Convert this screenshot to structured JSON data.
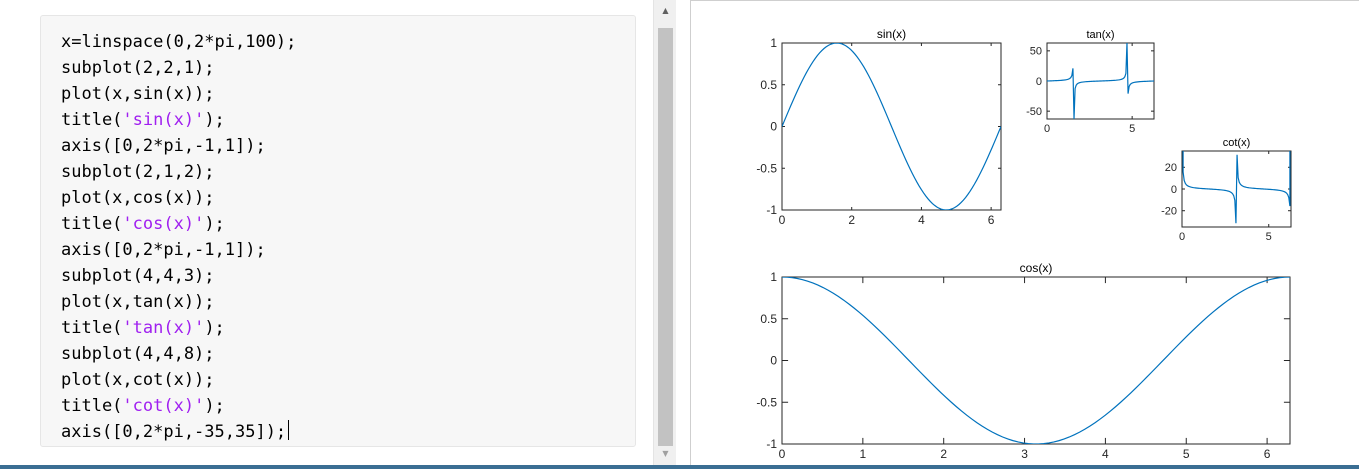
{
  "editor": {
    "lines": [
      [
        {
          "t": "x=linspace(0,2*pi,100);",
          "s": false
        }
      ],
      [
        {
          "t": "subplot(2,2,1);",
          "s": false
        }
      ],
      [
        {
          "t": "plot(x,sin(x));",
          "s": false
        }
      ],
      [
        {
          "t": "title(",
          "s": false
        },
        {
          "t": "'sin(x)'",
          "s": true
        },
        {
          "t": ");",
          "s": false
        }
      ],
      [
        {
          "t": "axis([0,2*pi,-1,1]);",
          "s": false
        }
      ],
      [
        {
          "t": "subplot(2,1,2);",
          "s": false
        }
      ],
      [
        {
          "t": "plot(x,cos(x));",
          "s": false
        }
      ],
      [
        {
          "t": "title(",
          "s": false
        },
        {
          "t": "'cos(x)'",
          "s": true
        },
        {
          "t": ");",
          "s": false
        }
      ],
      [
        {
          "t": "axis([0,2*pi,-1,1]);",
          "s": false
        }
      ],
      [
        {
          "t": "subplot(4,4,3);",
          "s": false
        }
      ],
      [
        {
          "t": "plot(x,tan(x));",
          "s": false
        }
      ],
      [
        {
          "t": "title(",
          "s": false
        },
        {
          "t": "'tan(x)'",
          "s": true
        },
        {
          "t": ");",
          "s": false
        }
      ],
      [
        {
          "t": "subplot(4,4,8);",
          "s": false
        }
      ],
      [
        {
          "t": "plot(x,cot(x));",
          "s": false
        }
      ],
      [
        {
          "t": "title(",
          "s": false
        },
        {
          "t": "'cot(x)'",
          "s": true
        },
        {
          "t": ");",
          "s": false
        }
      ],
      [
        {
          "t": "axis([0,2*pi,-35,35]);",
          "s": false
        }
      ]
    ],
    "colors": {
      "code": "#000000",
      "string": "#a020f0"
    }
  },
  "scrollbar": {
    "up_icon": "triangle-up-icon",
    "down_icon": "triangle-down-icon"
  },
  "chart_data": [
    {
      "id": "sin",
      "type": "line",
      "title": "sin(x)",
      "function": "sin",
      "x_range": [
        0,
        6.2832
      ],
      "samples": 100,
      "xlim": [
        0,
        6.2832
      ],
      "ylim": [
        -1,
        1
      ],
      "x_ticks": [
        0,
        2,
        4,
        6
      ],
      "x_tick_labels": [
        "0",
        "2",
        "4",
        "6"
      ],
      "y_ticks": [
        -1,
        -0.5,
        0,
        0.5,
        1
      ],
      "y_tick_labels": [
        "-1",
        "-0.5",
        "0",
        "0.5",
        "1"
      ],
      "line_color": "#0072bd"
    },
    {
      "id": "tan",
      "type": "line",
      "title": "tan(x)",
      "function": "tan",
      "x_range": [
        0,
        6.2832
      ],
      "samples": 100,
      "xlim": [
        0,
        6.2832
      ],
      "ylim": [
        -63,
        63
      ],
      "x_ticks": [
        0,
        5
      ],
      "x_tick_labels": [
        "0",
        "5"
      ],
      "y_ticks": [
        -50,
        0,
        50
      ],
      "y_tick_labels": [
        "-50",
        "0",
        "50"
      ],
      "line_color": "#0072bd"
    },
    {
      "id": "cot",
      "type": "line",
      "title": "cot(x)",
      "function": "cot",
      "x_range": [
        0,
        6.2832
      ],
      "samples": 100,
      "xlim": [
        0,
        6.2832
      ],
      "ylim": [
        -35,
        35
      ],
      "x_ticks": [
        0,
        5
      ],
      "x_tick_labels": [
        "0",
        "5"
      ],
      "y_ticks": [
        -20,
        0,
        20
      ],
      "y_tick_labels": [
        "-20",
        "0",
        "20"
      ],
      "line_color": "#0072bd"
    },
    {
      "id": "cos",
      "type": "line",
      "title": "cos(x)",
      "function": "cos",
      "x_range": [
        0,
        6.2832
      ],
      "samples": 100,
      "xlim": [
        0,
        6.2832
      ],
      "ylim": [
        -1,
        1
      ],
      "x_ticks": [
        0,
        1,
        2,
        3,
        4,
        5,
        6
      ],
      "x_tick_labels": [
        "0",
        "1",
        "2",
        "3",
        "4",
        "5",
        "6"
      ],
      "y_ticks": [
        -1,
        -0.5,
        0,
        0.5,
        1
      ],
      "y_tick_labels": [
        "-1",
        "-0.5",
        "0",
        "0.5",
        "1"
      ],
      "line_color": "#0072bd"
    }
  ]
}
